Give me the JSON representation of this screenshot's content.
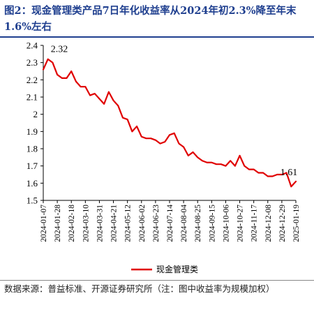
{
  "header": {
    "title": "图2：现金管理类产品7日年化收益率从2024年初2.3%降至年末1.6%左右"
  },
  "footer": {
    "source": "数据来源：普益标准、开源证券研究所（注：图中收益率为规模加权）"
  },
  "colors": {
    "title": "#1f3f8f",
    "series": "#e00000"
  },
  "chart_data": {
    "type": "line",
    "title": "",
    "xlabel": "",
    "ylabel": "",
    "ylim": [
      1.5,
      2.4
    ],
    "yticks": [
      1.5,
      1.6,
      1.7,
      1.8,
      1.9,
      2.0,
      2.1,
      2.2,
      2.3,
      2.4
    ],
    "ytick_labels": [
      "1.5",
      "1.6",
      "1.7",
      "1.8",
      "1.9",
      "2",
      "2.1",
      "2.2",
      "2.3",
      "2.4"
    ],
    "x_tick_labels": [
      "2024-01-07",
      "2024-01-28",
      "2024-02-18",
      "2024-03-10",
      "2024-03-31",
      "2024-04-21",
      "2024-05-12",
      "2024-06-02",
      "2024-06-23",
      "2024-07-14",
      "2024-08-04",
      "2024-08-25",
      "2024-09-15",
      "2024-10-06",
      "2024-10-27",
      "2024-11-17",
      "2024-12-08",
      "2024-12-29",
      "2025-01-19"
    ],
    "grid": false,
    "legend": {
      "placement": "bottom",
      "entries": [
        "现金管理类"
      ]
    },
    "annotations": [
      {
        "text": "2.32",
        "x": "2024-01-14",
        "y": 2.32
      },
      {
        "text": "1.61",
        "x": "2025-01-19",
        "y": 1.61
      }
    ],
    "series": [
      {
        "name": "现金管理类",
        "x": [
          "2024-01-07",
          "2024-01-14",
          "2024-01-21",
          "2024-01-28",
          "2024-02-04",
          "2024-02-11",
          "2024-02-18",
          "2024-02-25",
          "2024-03-03",
          "2024-03-10",
          "2024-03-17",
          "2024-03-24",
          "2024-03-31",
          "2024-04-07",
          "2024-04-14",
          "2024-04-21",
          "2024-04-28",
          "2024-05-05",
          "2024-05-12",
          "2024-05-19",
          "2024-05-26",
          "2024-06-02",
          "2024-06-09",
          "2024-06-16",
          "2024-06-23",
          "2024-06-30",
          "2024-07-07",
          "2024-07-14",
          "2024-07-21",
          "2024-07-28",
          "2024-08-04",
          "2024-08-11",
          "2024-08-18",
          "2024-08-25",
          "2024-09-01",
          "2024-09-08",
          "2024-09-15",
          "2024-09-22",
          "2024-09-29",
          "2024-10-06",
          "2024-10-13",
          "2024-10-20",
          "2024-10-27",
          "2024-11-03",
          "2024-11-10",
          "2024-11-17",
          "2024-11-24",
          "2024-12-01",
          "2024-12-08",
          "2024-12-15",
          "2024-12-22",
          "2024-12-29",
          "2025-01-05",
          "2025-01-12",
          "2025-01-19"
        ],
        "values": [
          2.26,
          2.32,
          2.3,
          2.23,
          2.21,
          2.21,
          2.25,
          2.19,
          2.16,
          2.16,
          2.11,
          2.12,
          2.09,
          2.06,
          2.13,
          2.08,
          2.05,
          1.98,
          1.97,
          1.9,
          1.93,
          1.87,
          1.86,
          1.86,
          1.85,
          1.83,
          1.84,
          1.88,
          1.89,
          1.83,
          1.81,
          1.76,
          1.78,
          1.75,
          1.73,
          1.72,
          1.72,
          1.71,
          1.71,
          1.7,
          1.73,
          1.7,
          1.76,
          1.7,
          1.68,
          1.68,
          1.66,
          1.66,
          1.64,
          1.64,
          1.65,
          1.65,
          1.66,
          1.58,
          1.61
        ]
      }
    ]
  }
}
